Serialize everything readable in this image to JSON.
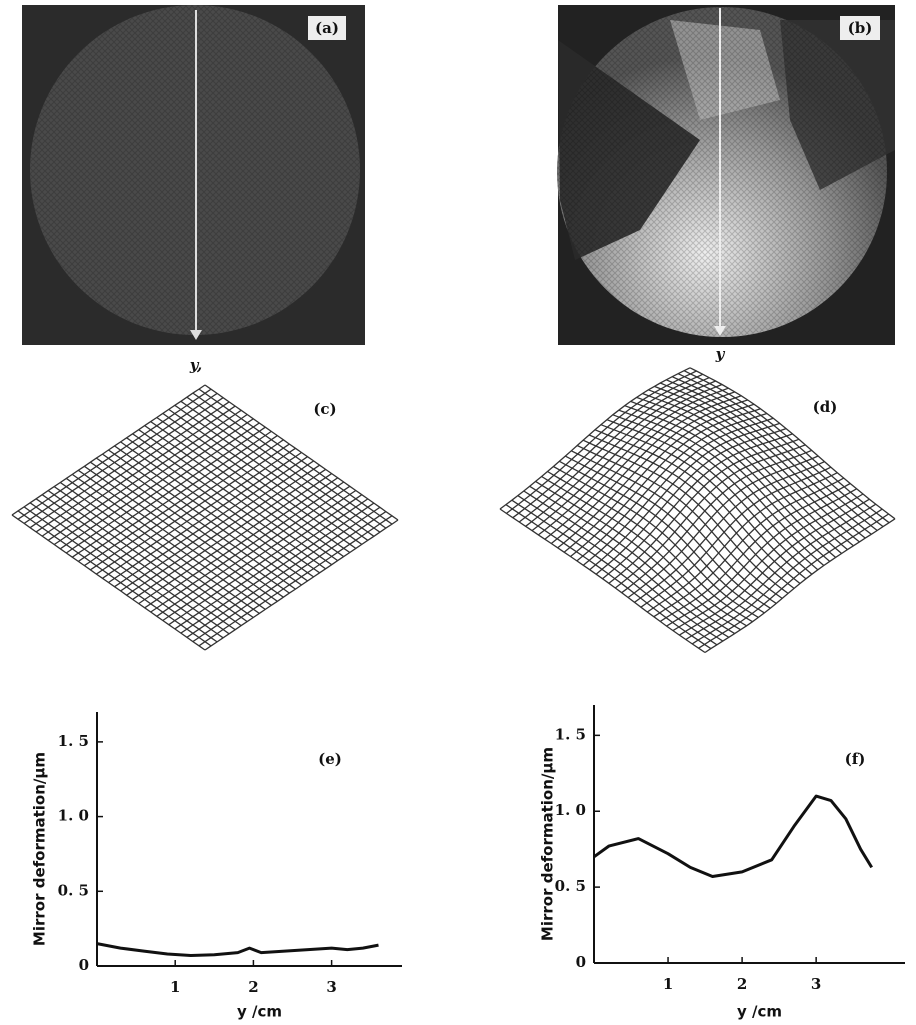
{
  "panels": {
    "a": "(a)",
    "a_axis": "y,",
    "b": "(b)",
    "b_axis": "y",
    "c": "(c)",
    "d": "(d)"
  },
  "chart_data": [
    {
      "type": "line",
      "title": "(e)",
      "x_label": "y /cm",
      "y_label": "Mirror deformation/μm",
      "x": [
        0,
        0.3,
        0.6,
        0.9,
        1.2,
        1.5,
        1.8,
        1.95,
        2.1,
        2.4,
        2.7,
        3.0,
        3.2,
        3.4,
        3.6
      ],
      "series": [
        {
          "color": "#111111",
          "values": [
            0.15,
            0.12,
            0.1,
            0.08,
            0.07,
            0.075,
            0.09,
            0.12,
            0.09,
            0.1,
            0.11,
            0.12,
            0.11,
            0.12,
            0.14
          ]
        }
      ],
      "xlim": [
        0,
        3.9
      ],
      "ylim": [
        0,
        1.7
      ],
      "xticks": [
        1,
        2,
        3
      ],
      "yticks": [
        0,
        {
          "value": 0.5,
          "label": "0. 5"
        },
        {
          "value": 1.0,
          "label": "1. 0"
        },
        {
          "value": 1.5,
          "label": "1. 5"
        }
      ]
    },
    {
      "type": "line",
      "title": "(f)",
      "x_label": "y /cm",
      "y_label": "Mirror deformation/μm",
      "x": [
        0,
        0.2,
        0.6,
        1.0,
        1.3,
        1.6,
        2.0,
        2.4,
        2.7,
        3.0,
        3.2,
        3.4,
        3.6,
        3.75
      ],
      "series": [
        {
          "color": "#111111",
          "values": [
            0.7,
            0.77,
            0.82,
            0.72,
            0.63,
            0.57,
            0.6,
            0.68,
            0.9,
            1.1,
            1.07,
            0.95,
            0.75,
            0.63
          ]
        }
      ],
      "xlim": [
        0,
        4.2
      ],
      "ylim": [
        0,
        1.7
      ],
      "xticks": [
        1,
        2,
        3
      ],
      "yticks": [
        0,
        {
          "value": 0.5,
          "label": "0. 5"
        },
        {
          "value": 1.0,
          "label": "1. 0"
        },
        {
          "value": 1.5,
          "label": "1. 5"
        }
      ]
    }
  ]
}
